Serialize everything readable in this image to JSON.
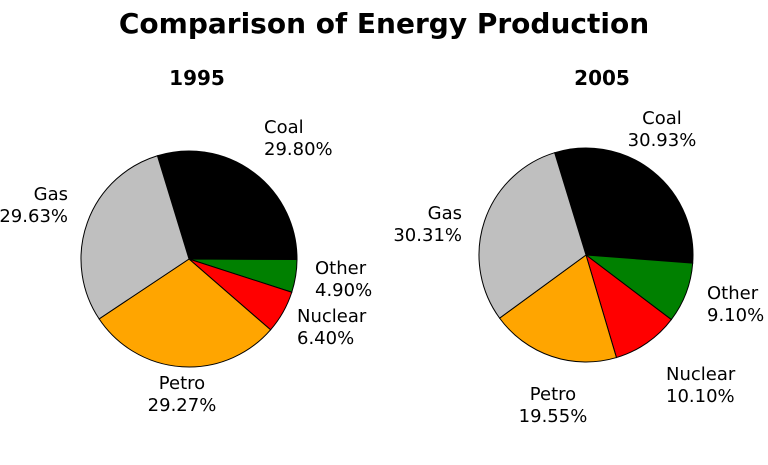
{
  "title": "Comparison of Energy Production",
  "chart_data": [
    {
      "type": "pie",
      "title": "1995",
      "labels": [
        "Coal",
        "Other",
        "Nuclear",
        "Petro",
        "Gas"
      ],
      "values": [
        29.8,
        4.9,
        6.4,
        29.27,
        29.63
      ],
      "display": [
        "29.80%",
        "4.90%",
        "6.40%",
        "29.27%",
        "29.63%"
      ],
      "colors": [
        "#000000",
        "#008000",
        "#FF0000",
        "#FFA500",
        "#BFBFBF"
      ],
      "start_angle_deg_from_12": -17,
      "direction": "clockwise",
      "legend": "none",
      "label_style": "outside-with-percent"
    },
    {
      "type": "pie",
      "title": "2005",
      "labels": [
        "Coal",
        "Other",
        "Nuclear",
        "Petro",
        "Gas"
      ],
      "values": [
        30.93,
        9.1,
        10.1,
        19.55,
        30.31
      ],
      "display": [
        "30.93%",
        "9.10%",
        "10.10%",
        "19.55%",
        "30.31%"
      ],
      "colors": [
        "#000000",
        "#008000",
        "#FF0000",
        "#FFA500",
        "#BFBFBF"
      ],
      "start_angle_deg_from_12": -17,
      "direction": "clockwise",
      "legend": "none",
      "label_style": "outside-with-percent"
    }
  ],
  "slice_stroke_color": "#000000"
}
